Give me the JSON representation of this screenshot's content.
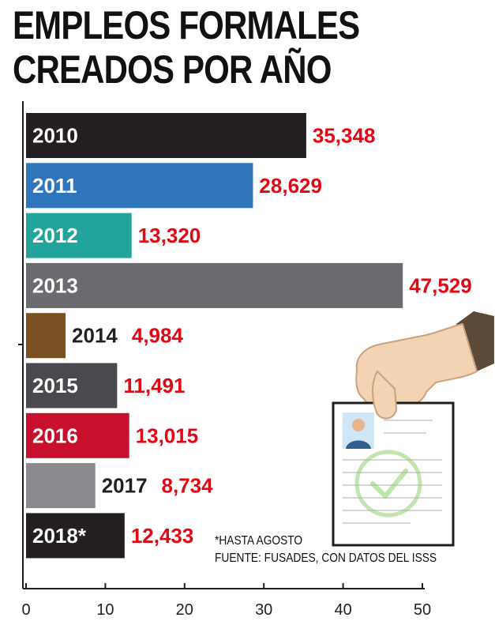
{
  "title": {
    "line1": "EMPLEOS FORMALES",
    "line2": "CREADOS POR AÑO"
  },
  "chart_data": {
    "type": "bar",
    "orientation": "horizontal",
    "categories": [
      "2010",
      "2011",
      "2012",
      "2013",
      "2014",
      "2015",
      "2016",
      "2017",
      "2018*"
    ],
    "values": [
      35348,
      28629,
      13320,
      47529,
      4984,
      11491,
      13015,
      8734,
      12433
    ],
    "value_labels": [
      "35,348",
      "28,629",
      "13,320",
      "47,529",
      "4,984",
      "11,491",
      "13,015",
      "8,734",
      "12,433"
    ],
    "bar_colors": [
      "#231f20",
      "#2f75bb",
      "#22a39b",
      "#6a6a6f",
      "#7a4f22",
      "#4a4a4e",
      "#c8102e",
      "#8a8a8e",
      "#231f20"
    ],
    "value_label_color": "#e30613",
    "x_ticks": [
      "0",
      "10",
      "20",
      "30",
      "40",
      "50"
    ],
    "xlim": [
      0,
      50000
    ],
    "grid": false
  },
  "notes": {
    "line1": "*HASTA AGOSTO",
    "line2": "FUENTE: FUSADES, CON DATOS DEL ISSS"
  },
  "illustration": {
    "icon": "hand-holding-resume-icon",
    "skin_color": "#f2d3b3",
    "sleeve_color": "#5b4a37",
    "check_color": "#8ccf6a"
  }
}
